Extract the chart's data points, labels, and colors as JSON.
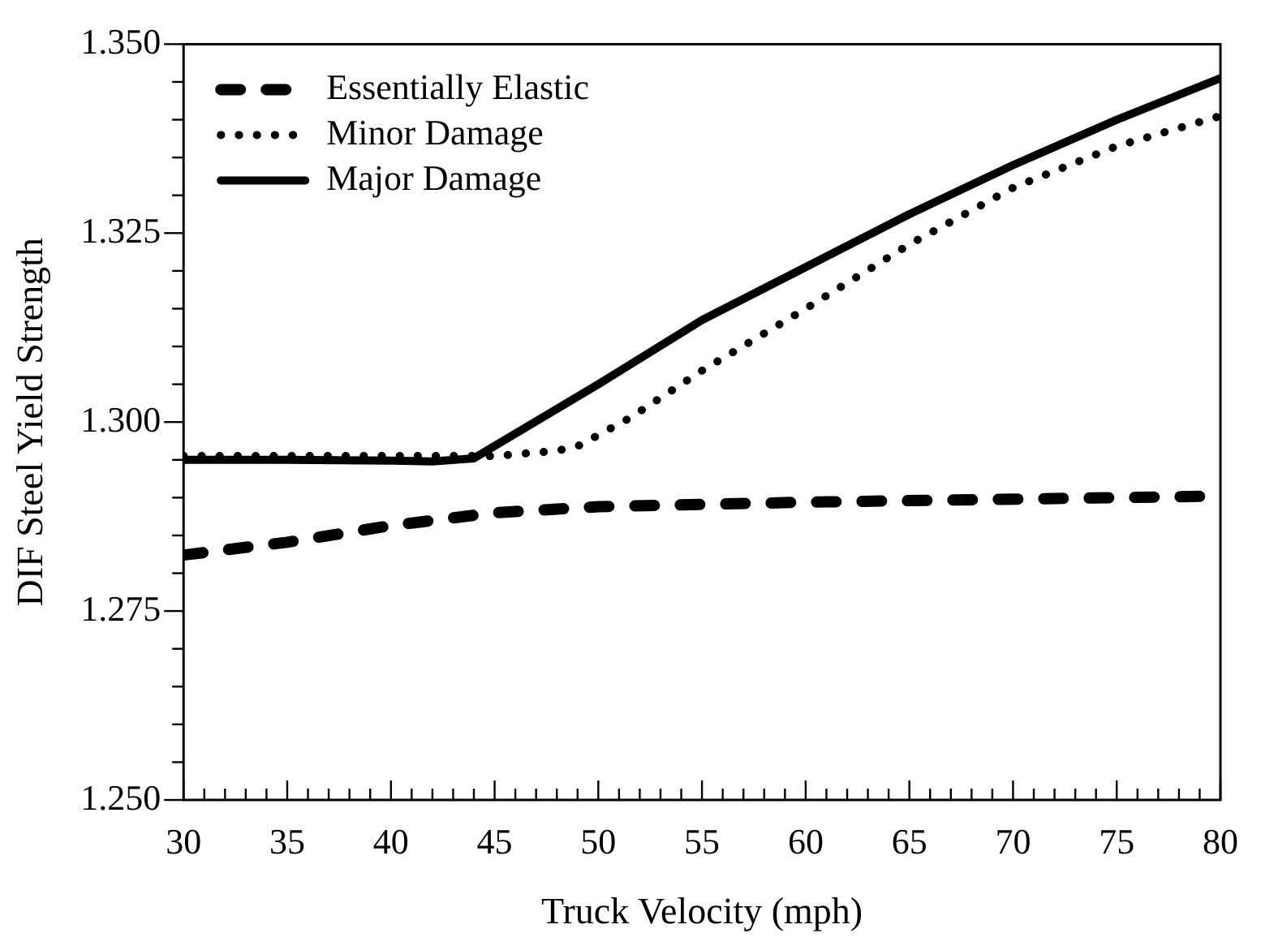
{
  "chart_data": {
    "type": "line",
    "xlabel": "Truck Velocity (mph)",
    "ylabel": "DIF Steel Yield Strength",
    "xlim": [
      30,
      80
    ],
    "ylim": [
      1.25,
      1.35
    ],
    "xticks": [
      {
        "value": 30,
        "label": "30"
      },
      {
        "value": 35,
        "label": "35"
      },
      {
        "value": 40,
        "label": "40"
      },
      {
        "value": 45,
        "label": "45"
      },
      {
        "value": 50,
        "label": "50"
      },
      {
        "value": 55,
        "label": "55"
      },
      {
        "value": 60,
        "label": "60"
      },
      {
        "value": 65,
        "label": "65"
      },
      {
        "value": 70,
        "label": "70"
      },
      {
        "value": 75,
        "label": "75"
      },
      {
        "value": 80,
        "label": "80"
      }
    ],
    "yticks": [
      {
        "value": 1.25,
        "label": "1.250"
      },
      {
        "value": 1.275,
        "label": "1.275"
      },
      {
        "value": 1.3,
        "label": "1.300"
      },
      {
        "value": 1.325,
        "label": "1.325"
      },
      {
        "value": 1.35,
        "label": "1.350"
      }
    ],
    "grid": false,
    "legend": "top left",
    "marker": "none",
    "series": [
      {
        "name": "Essentially Elastic",
        "color": "#000000",
        "line_style": "dashed",
        "x": [
          30,
          35,
          40,
          45,
          50,
          60,
          70,
          80
        ],
        "values": [
          1.2824,
          1.2841,
          1.2863,
          1.288,
          1.2888,
          1.2894,
          1.2898,
          1.2902
        ]
      },
      {
        "name": "Minor Damage",
        "color": "#000000",
        "line_style": "dotted",
        "x": [
          30,
          35,
          40,
          45,
          48,
          49,
          51.5,
          55,
          60,
          65,
          70,
          75,
          80
        ],
        "values": [
          1.2955,
          1.2955,
          1.2955,
          1.2955,
          1.2962,
          1.2968,
          1.3005,
          1.3068,
          1.315,
          1.3235,
          1.331,
          1.3365,
          1.3405
        ]
      },
      {
        "name": "Major Damage",
        "color": "#000000",
        "line_style": "solid",
        "x": [
          30,
          35,
          40,
          42,
          44,
          50,
          55,
          60,
          65,
          70,
          75,
          80
        ],
        "values": [
          1.295,
          1.295,
          1.2949,
          1.2948,
          1.2952,
          1.305,
          1.3135,
          1.3205,
          1.3275,
          1.334,
          1.34,
          1.3455
        ]
      }
    ]
  }
}
